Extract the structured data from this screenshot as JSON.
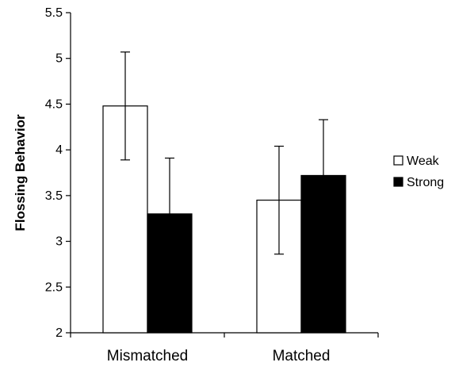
{
  "chart_data": {
    "type": "bar",
    "title": "",
    "xlabel": "",
    "ylabel": "Flossing Behavior",
    "ylim": [
      2,
      5.5
    ],
    "yticks": [
      "2",
      "2.5",
      "3",
      "3.5",
      "4",
      "4.5",
      "5",
      "5.5"
    ],
    "ytick_values": [
      2,
      2.5,
      3,
      3.5,
      4,
      4.5,
      5,
      5.5
    ],
    "categories": [
      "Mismatched",
      "Matched"
    ],
    "series": [
      {
        "name": "Weak",
        "color": "#ffffff",
        "values": [
          4.48,
          3.45
        ],
        "error_low": [
          3.89,
          2.86
        ],
        "error_high": [
          5.07,
          4.04
        ]
      },
      {
        "name": "Strong",
        "color": "#000000",
        "values": [
          3.3,
          3.72
        ],
        "error_low": [
          2.7,
          3.12
        ],
        "error_high": [
          3.91,
          4.33
        ]
      }
    ],
    "grid": false,
    "legend_position": "right"
  }
}
